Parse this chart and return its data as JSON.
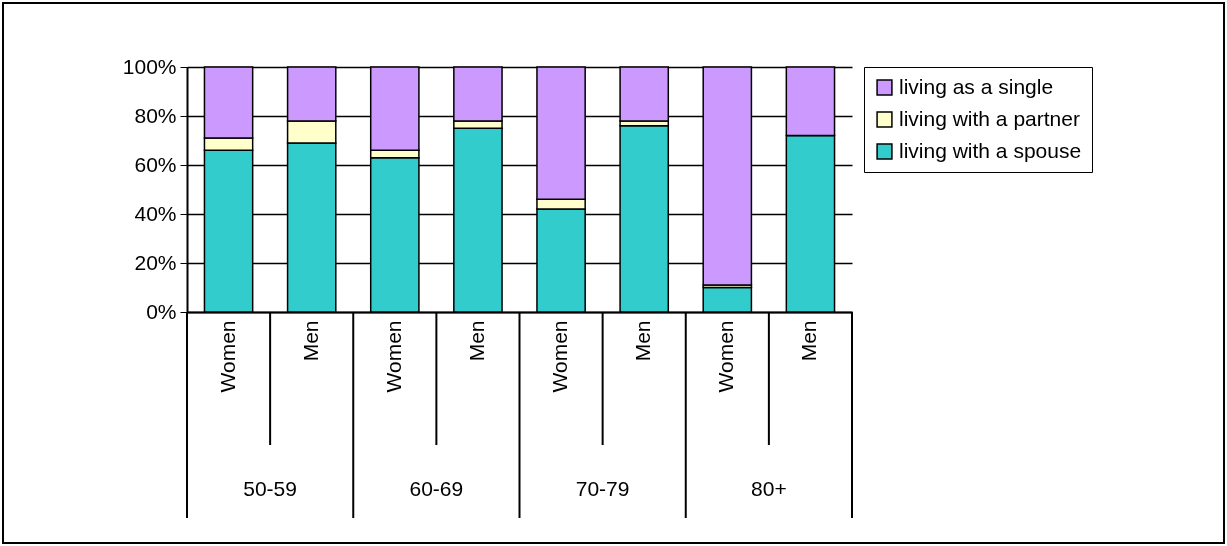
{
  "chart_data": {
    "type": "bar",
    "stacked": true,
    "categories": [
      "Women",
      "Men",
      "Women",
      "Men",
      "Women",
      "Men",
      "Women",
      "Men"
    ],
    "series": [
      {
        "name": "living with a spouse",
        "color": "#33cccc",
        "values": [
          66,
          69,
          63,
          75,
          42,
          76,
          10,
          72
        ]
      },
      {
        "name": "living with a partner",
        "color": "#ffffcc",
        "values": [
          5,
          9,
          3,
          3,
          4,
          2,
          1,
          0
        ]
      },
      {
        "name": "living as a single",
        "color": "#cc99ff",
        "values": [
          29,
          22,
          34,
          22,
          54,
          22,
          89,
          28
        ]
      }
    ],
    "ylim": [
      0,
      100
    ],
    "yticks": [
      {
        "value": 0,
        "label": "0%"
      },
      {
        "value": 20,
        "label": "20%"
      },
      {
        "value": 40,
        "label": "40%"
      },
      {
        "value": 60,
        "label": "60%"
      },
      {
        "value": 80,
        "label": "80%"
      },
      {
        "value": 100,
        "label": "100%"
      }
    ],
    "grid": "y",
    "legend": "right",
    "annotations": [
      "50-59",
      "60-69",
      "70-79",
      "80+"
    ]
  }
}
